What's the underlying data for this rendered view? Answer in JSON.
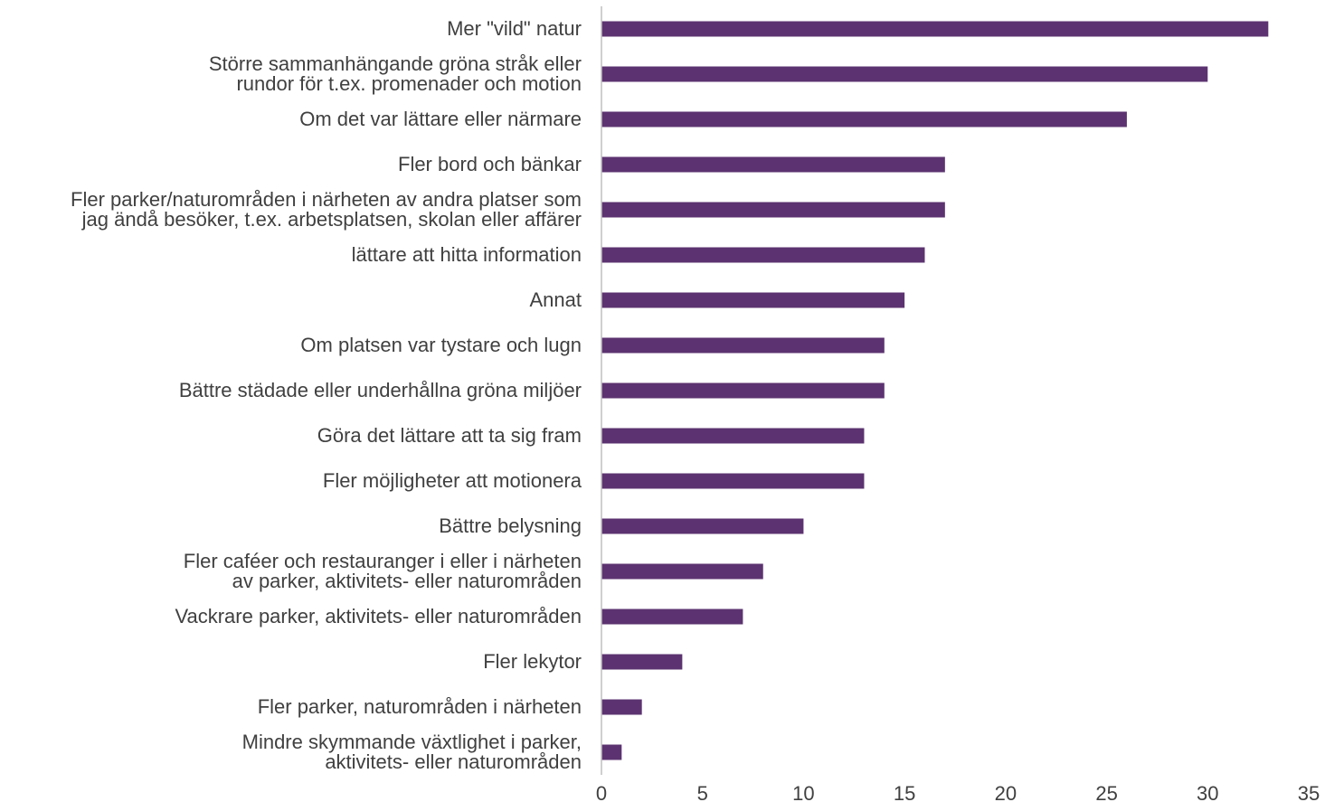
{
  "chart_data": {
    "type": "bar",
    "orientation": "horizontal",
    "categories": [
      "Mer \"vild\" natur",
      "Större sammanhängande gröna stråk eller\nrundor för t.ex. promenader och motion",
      "Om det var lättare eller närmare",
      "Fler bord och bänkar",
      "Fler parker/naturområden i närheten av andra platser som\njag ändå besöker, t.ex. arbetsplatsen, skolan eller affärer",
      "lättare att hitta information",
      "Annat",
      "Om platsen var tystare och lugn",
      "Bättre städade eller underhållna gröna miljöer",
      "Göra det lättare att ta sig fram",
      "Fler möjligheter att motionera",
      "Bättre belysning",
      "Fler caféer och restauranger i eller i närheten\nav parker, aktivitets- eller naturområden",
      "Vackrare parker, aktivitets- eller naturområden",
      "Fler lekytor",
      "Fler parker, naturområden i närheten",
      "Mindre skymmande växtlighet i parker,\naktivitets- eller naturområden"
    ],
    "values": [
      33,
      30,
      26,
      17,
      17,
      16,
      15,
      14,
      14,
      13,
      13,
      10,
      8,
      7,
      4,
      2,
      1
    ],
    "color": "#5c3370",
    "xlim": [
      0,
      35
    ],
    "xticks": [
      0,
      5,
      10,
      15,
      20,
      25,
      30,
      35
    ],
    "grid": false
  }
}
